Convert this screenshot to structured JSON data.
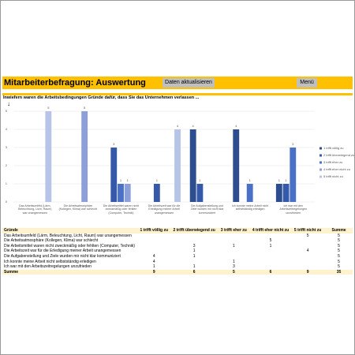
{
  "header": {
    "title": "Mitarbeiterbefragung: Auswertung",
    "buttons": [
      "Daten aktualisieren",
      "Menü"
    ],
    "question": "Inwiefern waren die Arbeitsbedingungen Gründe dafür, dass Sie das Unternehmen verlassen ..."
  },
  "chart_data": {
    "type": "bar",
    "categories": [
      "Das Arbeitsumfeld (Lärm, Beleuchtung, Licht, Raum) war unangemessen",
      "Die Arbeitsatmosphäre (Kollegen, Klima) war schlecht",
      "Die Arbeitsmittel waren nicht zweckmäßig oder fehlten (Computer, Technik)",
      "Die Arbeitszeit war für die Erledigung meiner Arbeit unangemessen",
      "Die Aufgabenstellung und Ziele wurden mir nicht klar kommuniziert",
      "Ich konnte meine Arbeit nicht selbstständig erledigen",
      "Ich war mit den Arbeitszeitregelungen unzufrieden"
    ],
    "series": [
      {
        "name": "1 trifft völlig zu",
        "color": "#2e4d8f",
        "values": [
          null,
          null,
          null,
          null,
          4,
          4,
          1
        ]
      },
      {
        "name": "2 trifft überwiegend zu",
        "color": "#3559a8",
        "values": [
          null,
          null,
          3,
          1,
          1,
          null,
          1
        ]
      },
      {
        "name": "3 trifft eher zu",
        "color": "#4a70c8",
        "values": [
          null,
          null,
          1,
          null,
          null,
          1,
          3
        ]
      },
      {
        "name": "4 trifft eher nicht zu",
        "color": "#8d9fd8",
        "values": [
          null,
          5,
          1,
          null,
          null,
          null,
          null
        ]
      },
      {
        "name": "5 trifft nicht zu",
        "color": "#b8c3e8",
        "values": [
          5,
          null,
          null,
          4,
          null,
          null,
          null
        ]
      }
    ],
    "ylim": [
      0,
      5
    ],
    "yticks": [
      0,
      1,
      2,
      3,
      4,
      5
    ],
    "grid": true,
    "legend": "right"
  },
  "table": {
    "label_header": "Gründe",
    "sum_header": "Summe",
    "row_sums": [
      5,
      5,
      5,
      5,
      5,
      5,
      5
    ],
    "column_sums": [
      9,
      6,
      5,
      6,
      9
    ],
    "total": 35
  }
}
